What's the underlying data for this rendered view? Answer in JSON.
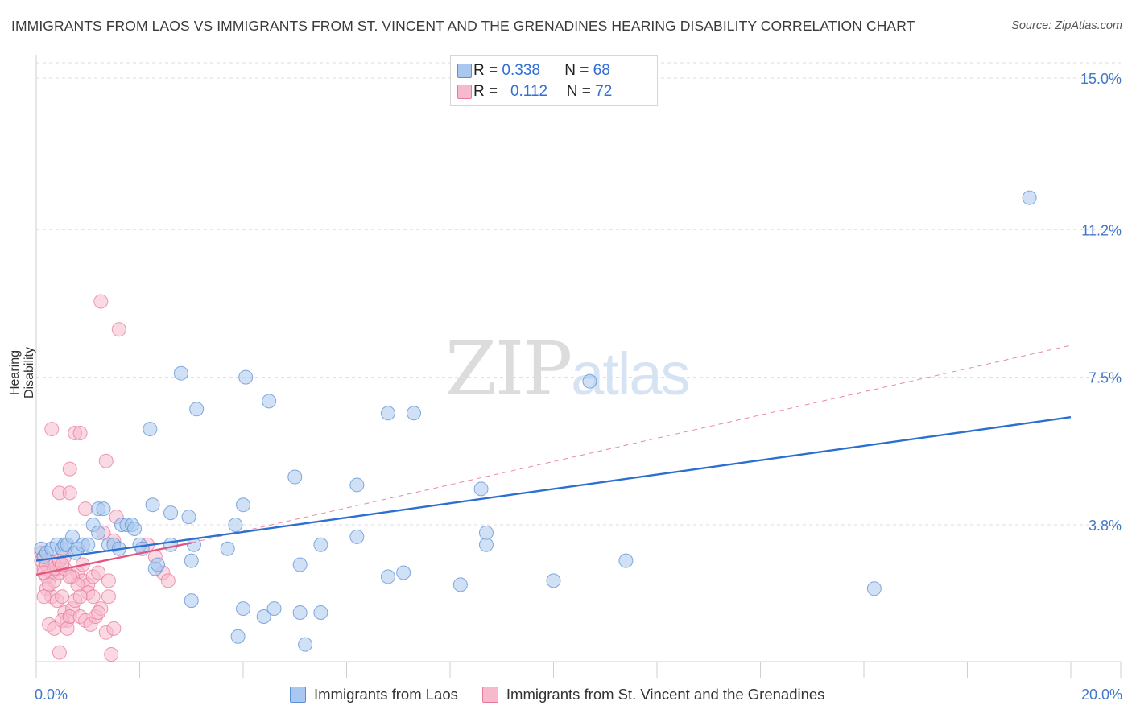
{
  "header": {
    "title": "IMMIGRANTS FROM LAOS VS IMMIGRANTS FROM ST. VINCENT AND THE GRENADINES HEARING DISABILITY CORRELATION CHART",
    "source": "Source: ZipAtlas.com"
  },
  "watermark": {
    "zip": "ZIP",
    "atlas": "atlas"
  },
  "legend": {
    "r_label": "R =",
    "n_label": "N =",
    "laos": {
      "r": "0.338",
      "n": "68"
    },
    "svg": {
      "r": "0.112",
      "n": "72"
    }
  },
  "colors": {
    "laos_fill": "#aac8ef",
    "laos_stroke": "#5b8fd6",
    "laos_line": "#2b6fd1",
    "svg_fill": "#f7b9cc",
    "svg_stroke": "#e8789c",
    "svg_line": "#e2557f",
    "axis_text": "#3f78c9",
    "grid": "#dddddd"
  },
  "chart_data": {
    "type": "scatter",
    "title": "IMMIGRANTS FROM LAOS VS IMMIGRANTS FROM ST. VINCENT AND THE GRENADINES HEARING DISABILITY CORRELATION CHART",
    "xlabel": "",
    "ylabel": "Hearing Disability",
    "xlim": [
      0,
      20
    ],
    "ylim": [
      0.5,
      15.5
    ],
    "x_tick_labels": {
      "0": "0.0%",
      "20": "20.0%"
    },
    "y_ticks": [
      3.8,
      7.5,
      11.2,
      15.0
    ],
    "y_tick_labels": [
      "3.8%",
      "7.5%",
      "11.2%",
      "15.0%"
    ],
    "legend_position": "top-center",
    "series": [
      {
        "name": "Immigrants from Laos",
        "r": 0.338,
        "n": 68,
        "trend": {
          "x": [
            0,
            20
          ],
          "y": [
            2.9,
            6.5
          ]
        },
        "points": [
          [
            0.1,
            3.2
          ],
          [
            0.15,
            3.0
          ],
          [
            0.2,
            3.1
          ],
          [
            0.3,
            3.2
          ],
          [
            0.4,
            3.3
          ],
          [
            0.5,
            3.2
          ],
          [
            0.55,
            3.3
          ],
          [
            0.6,
            3.3
          ],
          [
            0.7,
            3.5
          ],
          [
            0.75,
            3.1
          ],
          [
            0.8,
            3.2
          ],
          [
            0.9,
            3.3
          ],
          [
            1.0,
            3.3
          ],
          [
            1.1,
            3.8
          ],
          [
            1.2,
            4.2
          ],
          [
            1.3,
            4.2
          ],
          [
            1.2,
            3.6
          ],
          [
            1.4,
            3.3
          ],
          [
            1.5,
            3.3
          ],
          [
            1.6,
            3.2
          ],
          [
            1.65,
            3.8
          ],
          [
            1.75,
            3.8
          ],
          [
            1.85,
            3.8
          ],
          [
            2.0,
            3.3
          ],
          [
            2.05,
            3.2
          ],
          [
            2.6,
            4.1
          ],
          [
            2.6,
            3.3
          ],
          [
            2.3,
            2.7
          ],
          [
            2.25,
            4.3
          ],
          [
            2.35,
            2.8
          ],
          [
            3.0,
            2.9
          ],
          [
            3.05,
            3.3
          ],
          [
            2.95,
            4.0
          ],
          [
            2.8,
            7.6
          ],
          [
            3.7,
            3.2
          ],
          [
            3.85,
            3.8
          ],
          [
            4.0,
            4.3
          ],
          [
            4.05,
            7.5
          ],
          [
            4.5,
            6.9
          ],
          [
            3.1,
            6.7
          ],
          [
            2.2,
            6.2
          ],
          [
            5.1,
            2.8
          ],
          [
            5.0,
            5.0
          ],
          [
            5.5,
            3.3
          ],
          [
            6.2,
            3.5
          ],
          [
            6.8,
            6.6
          ],
          [
            7.3,
            6.6
          ],
          [
            6.2,
            4.8
          ],
          [
            8.6,
            4.7
          ],
          [
            8.7,
            3.6
          ],
          [
            8.7,
            3.3
          ],
          [
            10.7,
            7.4
          ],
          [
            4.4,
            1.5
          ],
          [
            5.1,
            1.6
          ],
          [
            5.5,
            1.6
          ],
          [
            4.0,
            1.7
          ],
          [
            4.6,
            1.7
          ],
          [
            6.8,
            2.5
          ],
          [
            8.2,
            2.3
          ],
          [
            10.0,
            2.4
          ],
          [
            11.4,
            2.9
          ],
          [
            16.2,
            2.2
          ],
          [
            19.2,
            12.0
          ],
          [
            3.9,
            1.0
          ],
          [
            5.2,
            0.8
          ],
          [
            3.0,
            1.9
          ],
          [
            7.1,
            2.6
          ],
          [
            1.9,
            3.7
          ]
        ]
      },
      {
        "name": "Immigrants from St. Vincent and the Grenadines",
        "r": 0.112,
        "n": 72,
        "trend": {
          "x": [
            0,
            3.0
          ],
          "y": [
            2.55,
            3.35
          ]
        },
        "trend_extension": {
          "x": [
            3.0,
            20
          ],
          "y": [
            3.35,
            8.3
          ]
        },
        "points": [
          [
            0.1,
            3.1
          ],
          [
            0.15,
            2.7
          ],
          [
            0.2,
            2.5
          ],
          [
            0.25,
            2.9
          ],
          [
            0.3,
            2.6
          ],
          [
            0.35,
            2.4
          ],
          [
            0.4,
            2.7
          ],
          [
            0.45,
            2.6
          ],
          [
            0.1,
            2.9
          ],
          [
            0.2,
            2.2
          ],
          [
            0.3,
            2.0
          ],
          [
            0.4,
            1.9
          ],
          [
            0.5,
            2.0
          ],
          [
            0.55,
            1.6
          ],
          [
            0.6,
            1.4
          ],
          [
            0.7,
            1.7
          ],
          [
            0.8,
            2.6
          ],
          [
            0.9,
            2.4
          ],
          [
            1.0,
            2.3
          ],
          [
            1.1,
            2.5
          ],
          [
            1.2,
            2.6
          ],
          [
            1.3,
            3.6
          ],
          [
            1.4,
            2.0
          ],
          [
            1.5,
            3.4
          ],
          [
            0.25,
            1.3
          ],
          [
            0.35,
            1.2
          ],
          [
            0.45,
            0.6
          ],
          [
            0.5,
            1.4
          ],
          [
            0.6,
            1.2
          ],
          [
            0.65,
            1.5
          ],
          [
            0.75,
            1.9
          ],
          [
            0.85,
            1.5
          ],
          [
            0.95,
            1.4
          ],
          [
            1.05,
            1.3
          ],
          [
            1.15,
            1.5
          ],
          [
            1.25,
            1.7
          ],
          [
            1.35,
            1.1
          ],
          [
            1.5,
            1.2
          ],
          [
            0.3,
            6.2
          ],
          [
            0.75,
            6.1
          ],
          [
            0.85,
            6.1
          ],
          [
            0.65,
            5.2
          ],
          [
            1.35,
            5.4
          ],
          [
            0.45,
            4.6
          ],
          [
            0.65,
            4.6
          ],
          [
            0.95,
            4.2
          ],
          [
            1.55,
            4.0
          ],
          [
            1.25,
            9.4
          ],
          [
            1.6,
            8.7
          ],
          [
            2.45,
            2.6
          ],
          [
            2.55,
            2.4
          ],
          [
            2.3,
            3.0
          ],
          [
            2.15,
            3.3
          ],
          [
            0.2,
            2.8
          ],
          [
            0.15,
            2.6
          ],
          [
            0.25,
            2.3
          ],
          [
            0.35,
            2.7
          ],
          [
            0.55,
            2.7
          ],
          [
            0.7,
            2.5
          ],
          [
            0.8,
            2.3
          ],
          [
            0.9,
            2.8
          ],
          [
            1.0,
            2.1
          ],
          [
            1.1,
            2.0
          ],
          [
            1.2,
            1.6
          ],
          [
            1.4,
            2.4
          ],
          [
            0.45,
            2.9
          ],
          [
            0.55,
            3.0
          ],
          [
            0.65,
            2.5
          ],
          [
            0.85,
            2.0
          ],
          [
            1.45,
            0.55
          ],
          [
            0.15,
            2.0
          ],
          [
            0.5,
            2.8
          ]
        ]
      }
    ]
  },
  "bottom_legend": {
    "laos": "Immigrants from Laos",
    "svg": "Immigrants from St. Vincent and the Grenadines"
  }
}
